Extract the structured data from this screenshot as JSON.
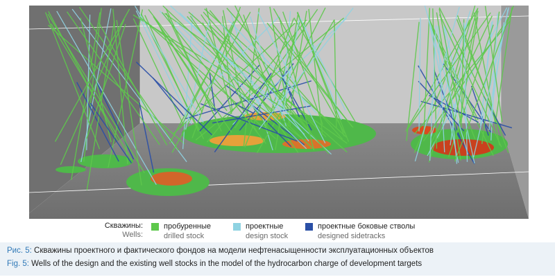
{
  "figure": {
    "scene_colors": {
      "back_wall": "#c7c7c7",
      "floor": "#7d7d7d",
      "left_wall": "#6f6f6f",
      "drilled_stock": "#5ec84c",
      "design_stock": "#8fd3e2",
      "designed_sidetracks": "#2a4fa6",
      "saturation_high": "#d94b1f",
      "saturation_mid": "#e6a13a"
    }
  },
  "legend": {
    "heading_ru": "Скважины:",
    "heading_en": "Wells:",
    "items": [
      {
        "label_ru": "пробуренные",
        "label_en": "drilled stock",
        "color": "#5ec84c"
      },
      {
        "label_ru": "проектные",
        "label_en": "design stock",
        "color": "#8fd3e2"
      },
      {
        "label_ru": "проектные боковые стволы",
        "label_en": "designed sidetracks",
        "color": "#2a4fa6"
      }
    ]
  },
  "caption": {
    "ru_label": "Рис. 5:",
    "ru_text": " Скважины проектного и фактического фондов на модели нефтенасыщенности эксплуатационных объектов",
    "en_label": "Fig. 5:",
    "en_text": " Wells of the design and the existing well stocks in the model of the hydrocarbon charge of development targets"
  }
}
